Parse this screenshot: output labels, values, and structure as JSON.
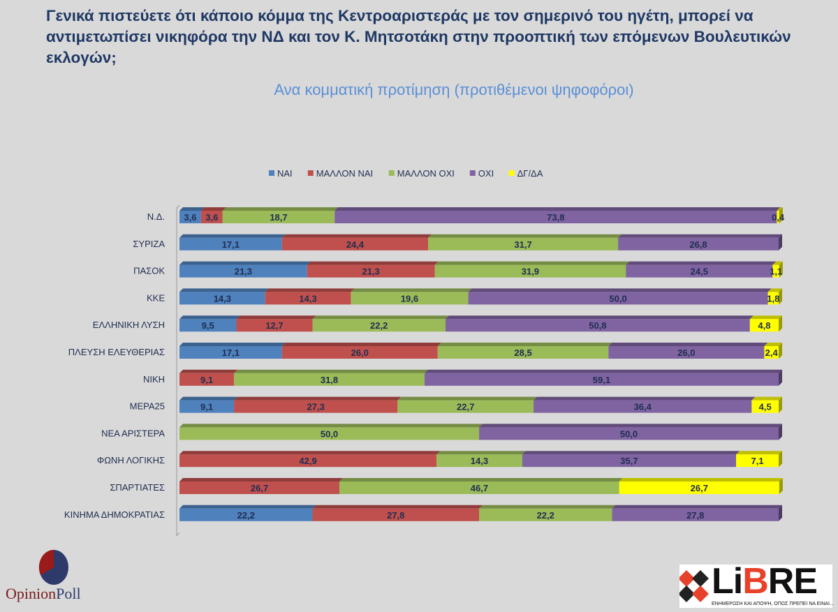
{
  "title": "Γενικά πιστεύετε ότι κάποιο κόμμα της Κεντροαριστεράς με τον σημερινό του ηγέτη, μπορεί να αντιμετωπίσει νικηφόρα την ΝΔ και τον Κ. Μητσοτάκη στην προοπτική των επόμενων Βουλευτικών εκλογών;",
  "subtitle": "Ανα κομματική προτίμηση (προτιθέμενοι ψηφοφόροι)",
  "chart_data": {
    "type": "bar",
    "orientation": "horizontal",
    "stacked": "100%",
    "legend_position": "top",
    "categories": [
      "Ν.Δ.",
      "ΣΥΡΙΖΑ",
      "ΠΑΣΟΚ",
      "ΚΚΕ",
      "ΕΛΛΗΝΙΚΗ ΛΥΣΗ",
      "ΠΛΕΥΣΗ ΕΛΕΥΘΕΡΙΑΣ",
      "ΝΙΚΗ",
      "ΜΕΡΑ25",
      "ΝΕΑ ΑΡΙΣΤΕΡΑ",
      "ΦΩΝΗ ΛΟΓΙΚΗΣ",
      "ΣΠΑΡΤΙΑΤΕΣ",
      "ΚΙΝΗΜΑ ΔΗΜΟΚΡΑΤΙΑΣ"
    ],
    "series": [
      {
        "name": "ΝΑΙ",
        "color": "#4f81bd",
        "values": [
          3.6,
          17.1,
          21.3,
          14.3,
          9.5,
          17.1,
          0,
          9.1,
          0,
          0,
          0,
          22.2
        ]
      },
      {
        "name": "ΜΑΛΛΟΝ ΝΑΙ",
        "color": "#c0504d",
        "values": [
          3.6,
          24.4,
          21.3,
          14.3,
          12.7,
          26.0,
          9.1,
          27.3,
          0,
          42.9,
          26.7,
          27.8
        ]
      },
      {
        "name": "ΜΑΛΛΟΝ ΟΧΙ",
        "color": "#9bbb59",
        "values": [
          18.7,
          31.7,
          31.9,
          19.6,
          22.2,
          28.5,
          31.8,
          22.7,
          50.0,
          14.3,
          46.7,
          22.2
        ]
      },
      {
        "name": "ΟΧΙ",
        "color": "#8064a2",
        "values": [
          73.8,
          26.8,
          24.5,
          50.0,
          50.8,
          26.0,
          59.1,
          36.4,
          50.0,
          35.7,
          0,
          27.8
        ]
      },
      {
        "name": "ΔΓ/ΔΑ",
        "color": "#ffff00",
        "values": [
          0.4,
          0,
          1.1,
          1.8,
          4.8,
          2.4,
          0,
          4.5,
          0,
          7.1,
          26.7,
          0
        ]
      }
    ]
  },
  "logos": {
    "opinionpoll_a": "Opinion",
    "opinionpoll_b": "Poll",
    "libre_a": "Li",
    "libre_b": "B",
    "libre_c": "RE",
    "libre_tagline": "ΕΝΗΜΕΡΩΣΗ ΚΑΙ ΑΠΟΨΗ, ΟΠΩΣ ΠΡΕΠΕΙ ΝΑ ΕΙΝΑΙ..."
  }
}
